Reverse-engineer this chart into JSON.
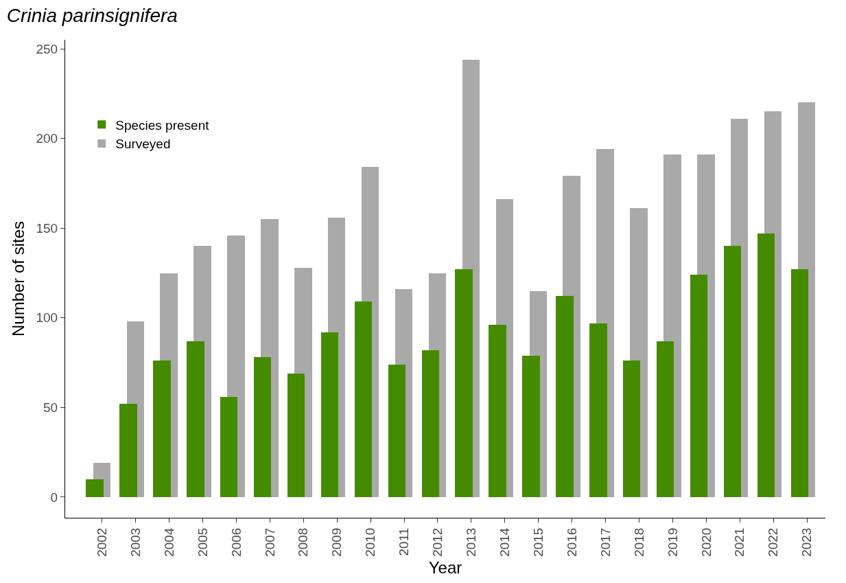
{
  "chart_data": {
    "type": "bar",
    "title": "Crinia parinsignifera",
    "xlabel": "Year",
    "ylabel": "Number of sites",
    "categories": [
      "2002",
      "2003",
      "2004",
      "2005",
      "2006",
      "2007",
      "2008",
      "2009",
      "2010",
      "2011",
      "2012",
      "2013",
      "2014",
      "2015",
      "2016",
      "2017",
      "2018",
      "2019",
      "2020",
      "2021",
      "2022",
      "2023"
    ],
    "series": [
      {
        "name": "Species present",
        "color": "#458b00",
        "values": [
          10,
          52,
          76,
          87,
          56,
          78,
          69,
          92,
          109,
          74,
          82,
          127,
          96,
          79,
          112,
          97,
          76,
          87,
          124,
          140,
          147,
          127
        ]
      },
      {
        "name": "Surveyed",
        "color": "#a9a9a9",
        "values": [
          19,
          98,
          125,
          140,
          146,
          155,
          128,
          156,
          184,
          116,
          125,
          244,
          166,
          115,
          179,
          194,
          161,
          191,
          191,
          211,
          215,
          220
        ]
      }
    ],
    "ylim": [
      -11.5,
      255
    ],
    "yticks": [
      0,
      50,
      100,
      150,
      200,
      250
    ],
    "grid": false,
    "legend": "top left"
  }
}
